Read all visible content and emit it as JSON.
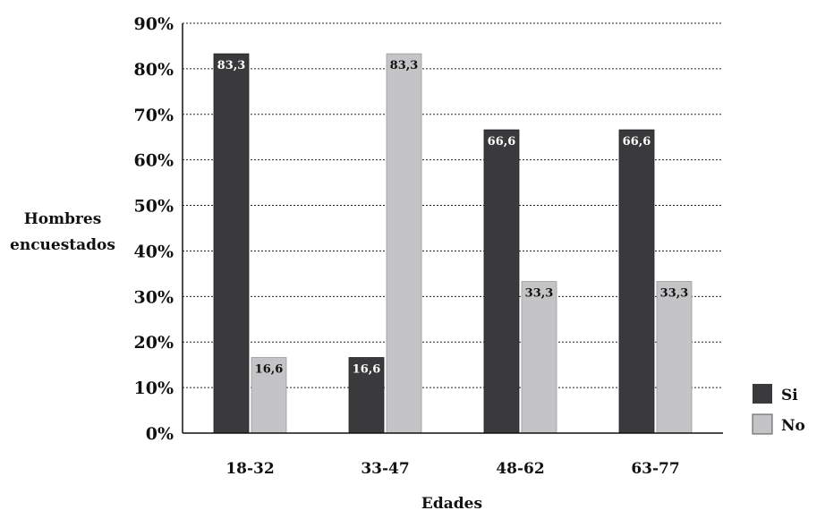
{
  "chart_data": {
    "type": "bar",
    "title": "",
    "xlabel": "Edades",
    "ylabel_lines": [
      "Hombres",
      "encuestados"
    ],
    "categories": [
      "18-32",
      "33-47",
      "48-62",
      "63-77"
    ],
    "series": [
      {
        "name": "Si",
        "color": "#3a3a3c",
        "values": [
          83.3,
          16.6,
          66.6,
          66.6
        ],
        "labels": [
          "83,3",
          "16,6",
          "66,6",
          "66,6"
        ],
        "label_color": "#ffffff"
      },
      {
        "name": "No",
        "color": "#c4c4c6",
        "values": [
          16.6,
          83.3,
          33.3,
          33.3
        ],
        "labels": [
          "16,6",
          "83,3",
          "33,3",
          "33,3"
        ],
        "label_color": "#111111"
      }
    ],
    "ylim": [
      0,
      90
    ],
    "yticks": [
      0,
      10,
      20,
      30,
      40,
      50,
      60,
      70,
      80,
      90
    ],
    "ytick_labels": [
      "0%",
      "10%",
      "20%",
      "30%",
      "40%",
      "50%",
      "60%",
      "70%",
      "80%",
      "90%"
    ],
    "grid": "horizontal-dotted",
    "legend": "right"
  }
}
